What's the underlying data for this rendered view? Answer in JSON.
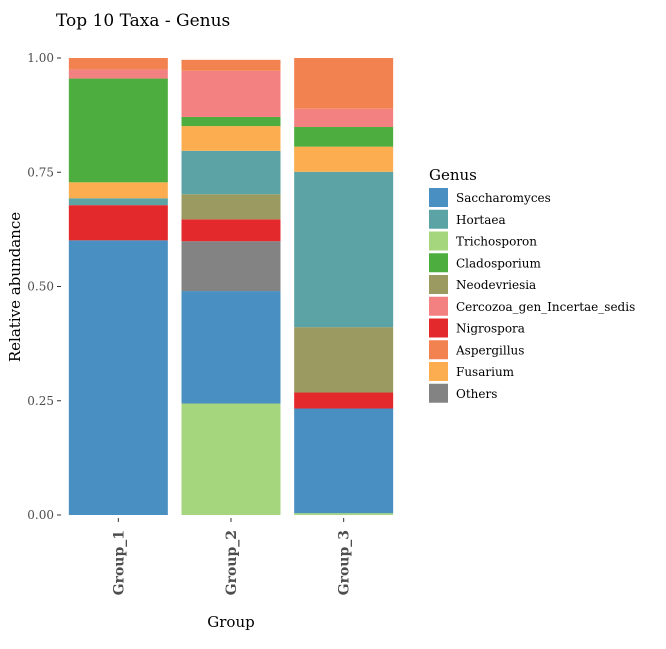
{
  "chart_data": {
    "type": "bar",
    "stacked": true,
    "title": "Top 10 Taxa - Genus",
    "xlabel": "Group",
    "ylabel": "Relative abundance",
    "ylim": [
      0,
      1
    ],
    "yticks": [
      0,
      0.25,
      0.5,
      0.75,
      1
    ],
    "ytick_labels": [
      "0.00",
      "0.25",
      "0.50",
      "0.75",
      "1.00"
    ],
    "categories": [
      "Group_1",
      "Group_2",
      "Group_3"
    ],
    "legend": {
      "title": "Genus",
      "position": "right"
    },
    "series": [
      {
        "name": "Saccharomyces",
        "color": "#4A8FC2",
        "values": [
          0.601,
          0.246,
          0.229
        ]
      },
      {
        "name": "Hortaea",
        "color": "#5BA3A5",
        "values": [
          0.015,
          0.095,
          0.34
        ]
      },
      {
        "name": "Trichosporon",
        "color": "#A5D67E",
        "values": [
          0.0,
          0.244,
          0.004
        ]
      },
      {
        "name": "Cladosporium",
        "color": "#4DAE3F",
        "values": [
          0.227,
          0.02,
          0.043
        ]
      },
      {
        "name": "Neodevriesia",
        "color": "#9A9A61",
        "values": [
          0.0,
          0.055,
          0.143
        ]
      },
      {
        "name": "Cercozoa_gen_Incertae_sedis",
        "color": "#F48181",
        "values": [
          0.02,
          0.101,
          0.04
        ]
      },
      {
        "name": "Nigrospora",
        "color": "#E3292B",
        "values": [
          0.077,
          0.048,
          0.035
        ]
      },
      {
        "name": "Aspergillus",
        "color": "#F28350",
        "values": [
          0.025,
          0.024,
          0.111
        ]
      },
      {
        "name": "Fusarium",
        "color": "#FCAD4F",
        "values": [
          0.035,
          0.054,
          0.055
        ]
      },
      {
        "name": "Others",
        "color": "#838383",
        "values": [
          0.0,
          0.109,
          0.0
        ]
      }
    ],
    "stack_order_bottom_to_top": [
      "Trichosporon",
      "Saccharomyces",
      "Others",
      "Nigrospora",
      "Neodevriesia",
      "Hortaea",
      "Fusarium",
      "Cladosporium",
      "Cercozoa_gen_Incertae_sedis",
      "Aspergillus"
    ]
  }
}
